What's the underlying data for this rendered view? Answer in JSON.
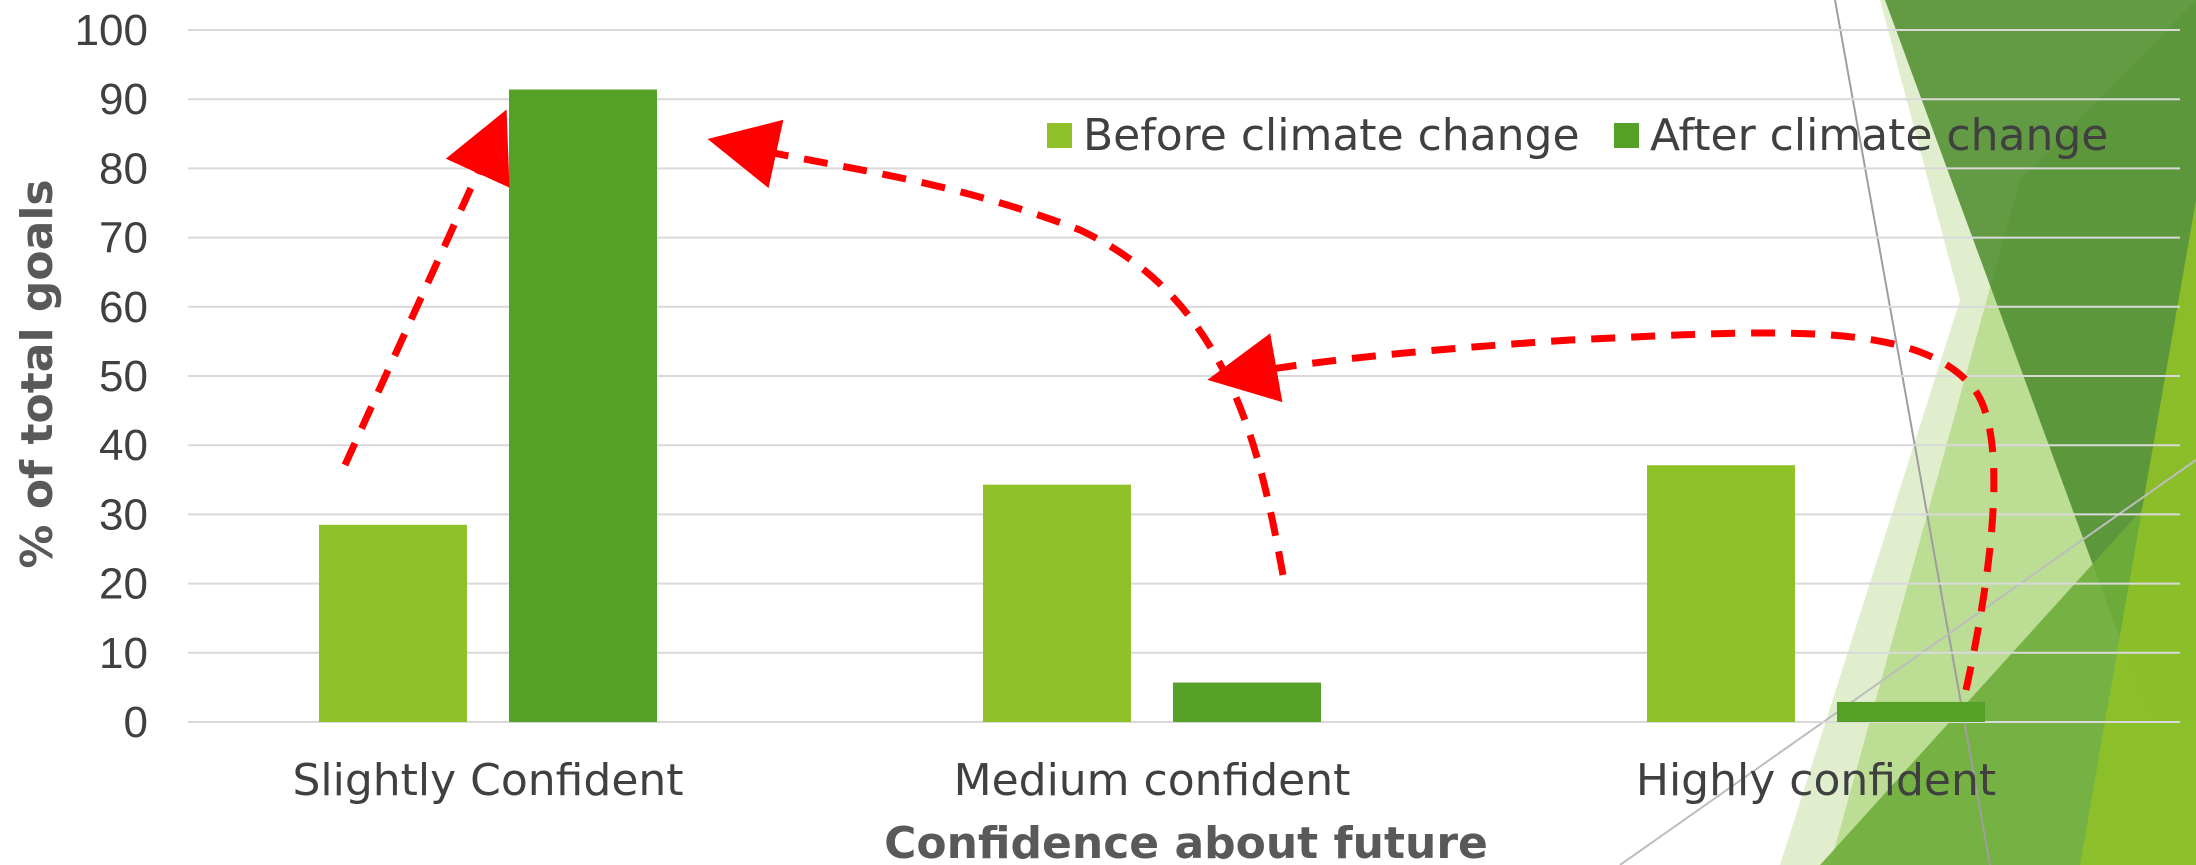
{
  "chart_data": {
    "type": "bar",
    "categories": [
      "Slightly Confident",
      "Medium confident",
      "Highly confident"
    ],
    "series": [
      {
        "name": "Before climate change",
        "values": [
          28.5,
          34.3,
          37.1
        ]
      },
      {
        "name": "After climate change",
        "values": [
          91.4,
          5.7,
          2.9
        ]
      }
    ],
    "xlabel": "Confidence about future",
    "ylabel": "% of total goals",
    "ylim": [
      0,
      100
    ],
    "yticks": [
      "0",
      "10",
      "20",
      "30",
      "40",
      "50",
      "60",
      "70",
      "80",
      "90",
      "100"
    ],
    "grid": true,
    "legend_position": "top-right"
  },
  "colors": {
    "before": "#8FC128",
    "after": "#55A026",
    "gridline": "#D9D9D9",
    "arrow": "#FF0000",
    "decor_dark": "#4C8B2B",
    "decor_mid": "#6EAD3A",
    "decor_light": "#B5D98A",
    "decor_pale": "#DCEBC6"
  }
}
